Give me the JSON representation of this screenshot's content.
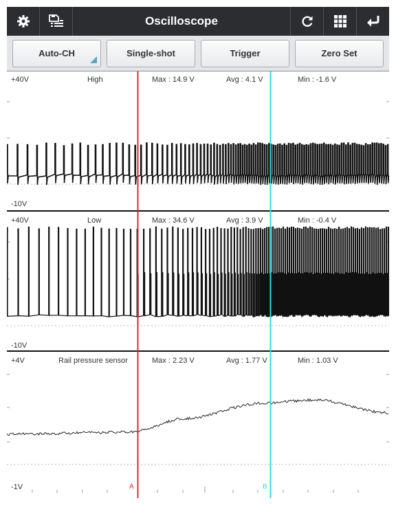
{
  "titlebar": {
    "title": "Oscilloscope",
    "icons_left": [
      "gear-icon",
      "save-list-icon"
    ],
    "icons_right": [
      "refresh-icon",
      "grid-icon",
      "return-icon"
    ]
  },
  "toolbar": {
    "auto_ch": "Auto-CH",
    "single_shot": "Single-shot",
    "trigger": "Trigger",
    "zero_set": "Zero Set"
  },
  "cursors": {
    "a": {
      "label": "A",
      "color": "#e8262b"
    },
    "b": {
      "label": "B",
      "color": "#36d6e3"
    }
  },
  "channels": [
    {
      "name": "High",
      "max_label": "+40V",
      "min_label": "-10V",
      "max": "Max : 14.9 V",
      "avg": "Avg : 4.1 V",
      "min": "Min : -1.6 V"
    },
    {
      "name": "Low",
      "max_label": "+40V",
      "min_label": "-10V",
      "max": "Max : 34.6 V",
      "avg": "Avg : 3.9 V",
      "min": "Min : -0.4 V"
    },
    {
      "name": "Rail pressure sensor",
      "max_label": "+4V",
      "min_label": "-1V",
      "max": "Max : 2.23 V",
      "avg": "Avg : 1.77 V",
      "min": "Min : 1.03 V"
    }
  ]
}
